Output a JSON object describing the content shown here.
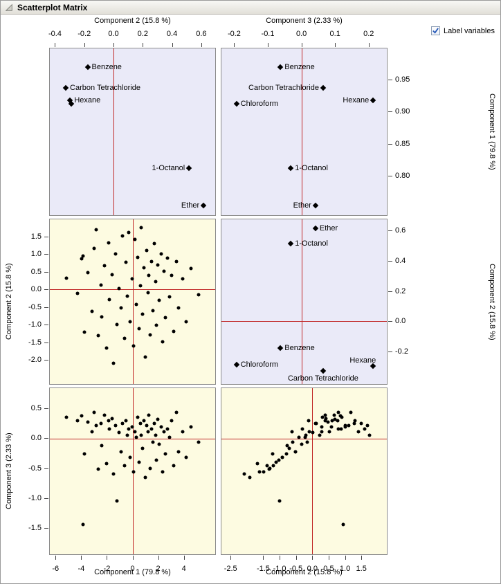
{
  "header": {
    "title": "Scatterplot Matrix"
  },
  "controls": {
    "label_variables": {
      "label": "Label variables",
      "checked": true
    }
  },
  "chart_data": {
    "type": "scatter",
    "subtype": "scatterplot-matrix",
    "legend": "none",
    "grid": false,
    "colors": {
      "loadings_bg": "#eaeaf8",
      "scores_bg": "#fdfbe1",
      "refline": "#c02525",
      "marker": "#000000"
    },
    "panels": [
      {
        "id": "comp2-vs-comp1-loadings",
        "bg": "loadings_bg",
        "marker": "diamond",
        "x_range": [
          -0.44,
          0.7
        ],
        "y_range": [
          0.737,
          1.0
        ],
        "ref_x": 0,
        "ref_y": null,
        "points": [
          {
            "label": "Benzene",
            "side": "right",
            "x": -0.18,
            "y": 0.97
          },
          {
            "label": "Carbon Tetrachloride",
            "side": "right",
            "x": -0.33,
            "y": 0.938
          },
          {
            "label": "Hexane",
            "side": "right",
            "x": -0.3,
            "y": 0.918
          },
          {
            "label": "",
            "side": "right",
            "x": -0.29,
            "y": 0.913
          },
          {
            "label": "1-Octanol",
            "side": "left",
            "x": 0.52,
            "y": 0.811
          },
          {
            "label": "Ether",
            "side": "left",
            "x": 0.62,
            "y": 0.752
          }
        ]
      },
      {
        "id": "comp3-vs-comp1-loadings",
        "bg": "loadings_bg",
        "marker": "diamond",
        "x_range": [
          -0.24,
          0.256
        ],
        "y_range": [
          0.737,
          1.0
        ],
        "ref_x": 0,
        "ref_y": null,
        "points": [
          {
            "label": "Benzene",
            "side": "right",
            "x": -0.063,
            "y": 0.97
          },
          {
            "label": "Carbon Tetrachloride",
            "side": "left",
            "x": 0.065,
            "y": 0.938
          },
          {
            "label": "Chloroform",
            "side": "right",
            "x": -0.195,
            "y": 0.913
          },
          {
            "label": "Hexane",
            "side": "left",
            "x": 0.215,
            "y": 0.918
          },
          {
            "label": "1-Octanol",
            "side": "right",
            "x": -0.032,
            "y": 0.811
          },
          {
            "label": "Ether",
            "side": "left",
            "x": 0.042,
            "y": 0.752
          }
        ]
      },
      {
        "id": "comp1-vs-comp2-scores",
        "bg": "scores_bg",
        "marker": "dot",
        "x_range": [
          -6.5,
          6.5
        ],
        "y_range": [
          -2.7,
          2.0
        ],
        "ref_x": 0,
        "ref_y": 0,
        "obs_idx": [
          0,
          1
        ]
      },
      {
        "id": "comp3-vs-comp2-loadings",
        "bg": "loadings_bg",
        "marker": "diamond",
        "x_range": [
          -0.24,
          0.256
        ],
        "y_range": [
          -0.42,
          0.68
        ],
        "ref_x": 0,
        "ref_y": 0,
        "points": [
          {
            "label": "Ether",
            "side": "right",
            "x": 0.042,
            "y": 0.62
          },
          {
            "label": "1-Octanol",
            "side": "right",
            "x": -0.032,
            "y": 0.52
          },
          {
            "label": "Benzene",
            "side": "right",
            "x": -0.063,
            "y": -0.18
          },
          {
            "label": "Chloroform",
            "side": "right",
            "x": -0.195,
            "y": -0.29
          },
          {
            "label": "Carbon Tetrachloride",
            "side": "below",
            "x": 0.065,
            "y": -0.33
          },
          {
            "label": "Hexane",
            "side": "upleft",
            "x": 0.215,
            "y": -0.3
          }
        ]
      },
      {
        "id": "comp1-vs-comp3-scores",
        "bg": "scores_bg",
        "marker": "dot",
        "x_range": [
          -6.5,
          6.5
        ],
        "y_range": [
          -1.95,
          0.85
        ],
        "ref_x": 0,
        "ref_y": 0,
        "obs_idx": [
          0,
          2
        ]
      },
      {
        "id": "comp2-vs-comp3-scores",
        "bg": "scores_bg",
        "marker": "dot",
        "x_range": [
          -2.8,
          2.3
        ],
        "y_range": [
          -1.95,
          0.85
        ],
        "ref_x": 0,
        "ref_y": 0,
        "obs_idx": [
          1,
          2
        ]
      }
    ],
    "axis_strips": [
      {
        "title": "Component 2  (15.8 %)",
        "panel": 0,
        "axis": "x",
        "side": "top",
        "ticks": [
          "-0.4",
          "-0.2",
          "0.0",
          "0.2",
          "0.4",
          "0.6"
        ]
      },
      {
        "title": "Component 3  (2.33 %)",
        "panel": 1,
        "axis": "x",
        "side": "top",
        "ticks": [
          "-0.2",
          "-0.1",
          "0.0",
          "0.1",
          "0.2"
        ]
      },
      {
        "title": "Component 1  (79.8 %)",
        "panel": 0,
        "axis": "y",
        "side": "right",
        "ticks": [
          "0.95",
          "0.90",
          "0.85",
          "0.80"
        ]
      },
      {
        "title": "Component 2  (15.8 %)",
        "panel": 2,
        "axis": "y",
        "side": "left",
        "ticks": [
          "1.5",
          "1.0",
          "0.5",
          "0.0",
          "-0.5",
          "-1.0",
          "-1.5",
          "-2.0"
        ]
      },
      {
        "title": "Component 2  (15.8 %)",
        "panel": 3,
        "axis": "y",
        "side": "right",
        "ticks": [
          "0.6",
          "0.4",
          "0.2",
          "0.0",
          "-0.2"
        ]
      },
      {
        "title": "Component 3  (2.33 %)",
        "panel": 4,
        "axis": "y",
        "side": "left",
        "ticks": [
          "0.5",
          "0.0",
          "-0.5",
          "-1.0",
          "-1.5"
        ]
      },
      {
        "title": "Component 1  (79.8 %)",
        "panel": 4,
        "axis": "x",
        "side": "bottom",
        "ticks": [
          "-6",
          "-4",
          "-2",
          "0",
          "2",
          "4"
        ]
      },
      {
        "title": "Component 2  (15.8 %)",
        "panel": 5,
        "axis": "x",
        "side": "bottom",
        "ticks": [
          "-2.5",
          "-1.5",
          "-1.0",
          "-0.5",
          "0.0",
          "0.5",
          "1.0",
          "1.5"
        ]
      }
    ],
    "observations": [
      [
        -5.2,
        0.32,
        0.36
      ],
      [
        -4.3,
        -0.12,
        0.3
      ],
      [
        -4.0,
        0.88,
        0.38
      ],
      [
        -3.8,
        -1.22,
        -0.26
      ],
      [
        -3.9,
        0.95,
        -1.45
      ],
      [
        -3.5,
        0.48,
        0.28
      ],
      [
        -3.2,
        -0.62,
        0.12
      ],
      [
        -3.0,
        1.18,
        0.44
      ],
      [
        -2.85,
        1.7,
        0.22
      ],
      [
        -2.7,
        -1.32,
        -0.52
      ],
      [
        -2.5,
        0.12,
        0.26
      ],
      [
        -2.4,
        -0.78,
        -0.12
      ],
      [
        -2.2,
        0.68,
        0.4
      ],
      [
        -2.05,
        -1.68,
        -0.42
      ],
      [
        -1.9,
        1.32,
        0.3
      ],
      [
        -1.8,
        -0.3,
        0.16
      ],
      [
        -1.6,
        0.42,
        0.34
      ],
      [
        -1.5,
        -2.1,
        -0.6
      ],
      [
        -1.35,
        1.02,
        0.22
      ],
      [
        -1.2,
        -1.0,
        -1.05
      ],
      [
        -1.05,
        0.02,
        0.1
      ],
      [
        -0.9,
        -0.52,
        -0.22
      ],
      [
        -0.8,
        1.52,
        0.26
      ],
      [
        -0.6,
        -1.4,
        -0.46
      ],
      [
        -0.5,
        0.78,
        0.3
      ],
      [
        -0.4,
        -0.2,
        0.06
      ],
      [
        -0.3,
        1.62,
        0.16
      ],
      [
        -0.2,
        -0.92,
        -0.32
      ],
      [
        -0.05,
        0.3,
        0.2
      ],
      [
        0.1,
        -1.62,
        -0.56
      ],
      [
        0.2,
        1.42,
        0.12
      ],
      [
        0.3,
        -0.42,
        0.02
      ],
      [
        0.4,
        0.92,
        0.36
      ],
      [
        0.5,
        -1.12,
        -0.4
      ],
      [
        0.6,
        0.1,
        0.26
      ],
      [
        0.7,
        1.76,
        0.06
      ],
      [
        0.8,
        -0.7,
        -0.16
      ],
      [
        0.9,
        0.62,
        0.3
      ],
      [
        1.0,
        -1.92,
        -0.66
      ],
      [
        1.1,
        1.12,
        0.22
      ],
      [
        1.2,
        -0.1,
        0.12
      ],
      [
        1.3,
        0.4,
        0.4
      ],
      [
        1.4,
        -1.3,
        -0.5
      ],
      [
        1.5,
        0.8,
        0.16
      ],
      [
        1.6,
        -0.6,
        -0.06
      ],
      [
        1.7,
        1.3,
        0.26
      ],
      [
        1.8,
        0.22,
        0.06
      ],
      [
        1.9,
        -1.02,
        -0.36
      ],
      [
        2.0,
        0.7,
        0.32
      ],
      [
        2.1,
        -0.32,
        -0.1
      ],
      [
        2.25,
        1.02,
        0.2
      ],
      [
        2.35,
        -1.5,
        -0.56
      ],
      [
        2.5,
        0.52,
        0.12
      ],
      [
        2.6,
        -0.8,
        -0.26
      ],
      [
        2.75,
        0.9,
        0.16
      ],
      [
        2.9,
        -0.22,
        0.02
      ],
      [
        3.1,
        0.4,
        0.3
      ],
      [
        3.25,
        -1.2,
        -0.46
      ],
      [
        3.45,
        0.8,
        0.44
      ],
      [
        3.6,
        -0.52,
        -0.22
      ],
      [
        3.95,
        0.3,
        0.12
      ],
      [
        4.2,
        -0.92,
        -0.32
      ],
      [
        4.6,
        0.6,
        0.2
      ],
      [
        5.2,
        -0.15,
        -0.06
      ]
    ]
  }
}
